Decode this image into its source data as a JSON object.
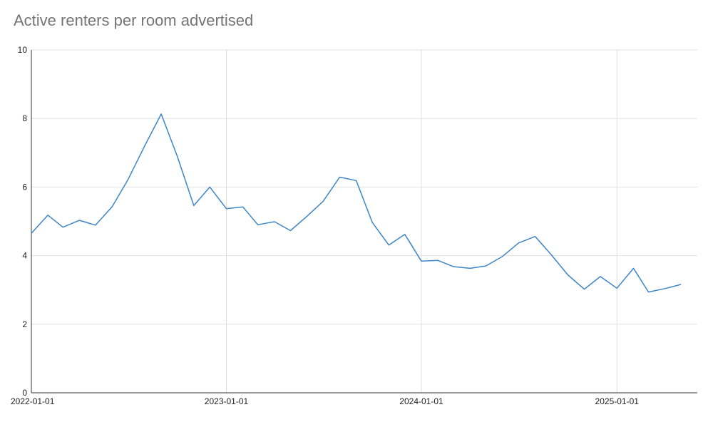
{
  "chart_data": {
    "type": "line",
    "title": "Active renters per room advertised",
    "xlabel": "",
    "ylabel": "",
    "ylim": [
      0,
      10
    ],
    "xlim": [
      "2022-01-01",
      "2025-05-01"
    ],
    "y_ticks": [
      "0",
      "2",
      "4",
      "6",
      "8",
      "10"
    ],
    "x_ticks": [
      "2022-01-01",
      "2023-01-01",
      "2024-01-01",
      "2025-01-01"
    ],
    "grid": true,
    "legend": "none",
    "series": [
      {
        "color": "#3d85c6",
        "x": [
          "2022-01-01",
          "2022-02-01",
          "2022-03-01",
          "2022-04-01",
          "2022-05-01",
          "2022-06-01",
          "2022-07-01",
          "2022-08-01",
          "2022-09-01",
          "2022-10-01",
          "2022-11-01",
          "2022-12-01",
          "2023-01-01",
          "2023-02-01",
          "2023-03-01",
          "2023-04-01",
          "2023-05-01",
          "2023-06-01",
          "2023-07-01",
          "2023-08-01",
          "2023-09-01",
          "2023-10-01",
          "2023-11-01",
          "2023-12-01",
          "2024-01-01",
          "2024-02-01",
          "2024-03-01",
          "2024-04-01",
          "2024-05-01",
          "2024-06-01",
          "2024-07-01",
          "2024-08-01",
          "2024-09-01",
          "2024-10-01",
          "2024-11-01",
          "2024-12-01",
          "2025-01-01",
          "2025-02-01",
          "2025-03-01",
          "2025-04-01",
          "2025-05-01"
        ],
        "values": [
          4.65,
          5.18,
          4.83,
          5.03,
          4.89,
          5.42,
          6.22,
          7.2,
          8.13,
          6.9,
          5.46,
          6.0,
          5.37,
          5.42,
          4.9,
          4.99,
          4.73,
          5.15,
          5.58,
          6.29,
          6.19,
          4.97,
          4.31,
          4.62,
          3.84,
          3.86,
          3.68,
          3.63,
          3.7,
          3.98,
          4.37,
          4.56,
          4.01,
          3.44,
          3.02,
          3.39,
          3.05,
          3.63,
          2.94,
          3.04,
          3.16
        ]
      }
    ]
  }
}
